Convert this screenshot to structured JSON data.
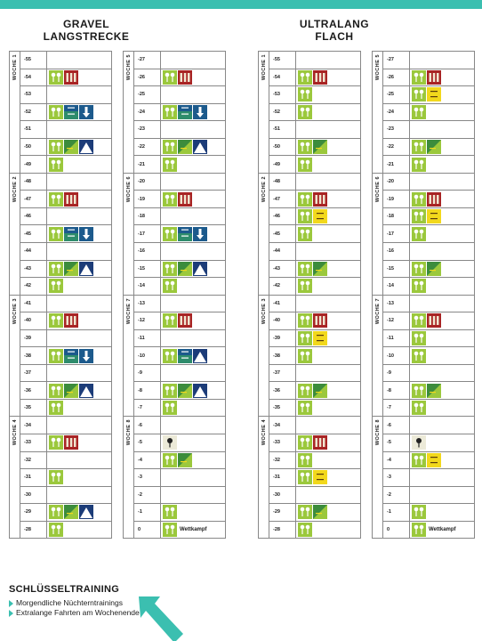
{
  "colors": {
    "accent": "#3bbfb0",
    "green_tile": "#9bc83c",
    "dark_green_tile": "#3c8c3c",
    "yellow_tile": "#f2d81c",
    "red_tile": "#a82424",
    "blue_tile": "#1c5a8c",
    "mountain_tile": "#1c3c78"
  },
  "plans": [
    {
      "title_lines": [
        "GRAVEL",
        "LANGSTRECKE"
      ],
      "columns": [
        {
          "weeks": [
            {
              "label": "WOCHE 1",
              "days": [
                {
                  "day": "-55",
                  "tiles": []
                },
                {
                  "day": "-54",
                  "tiles": [
                    "green",
                    "red"
                  ]
                },
                {
                  "day": "-53",
                  "tiles": []
                },
                {
                  "day": "-52",
                  "tiles": [
                    "green",
                    "blue-text",
                    "blue-arrow"
                  ]
                },
                {
                  "day": "-51",
                  "tiles": []
                },
                {
                  "day": "-50",
                  "tiles": [
                    "green",
                    "darkgreen",
                    "mountain"
                  ]
                },
                {
                  "day": "-49",
                  "tiles": [
                    "green"
                  ]
                }
              ]
            },
            {
              "label": "WOCHE 2",
              "days": [
                {
                  "day": "-48",
                  "tiles": []
                },
                {
                  "day": "-47",
                  "tiles": [
                    "green",
                    "red"
                  ]
                },
                {
                  "day": "-46",
                  "tiles": []
                },
                {
                  "day": "-45",
                  "tiles": [
                    "green",
                    "blue-text",
                    "blue-arrow"
                  ]
                },
                {
                  "day": "-44",
                  "tiles": []
                },
                {
                  "day": "-43",
                  "tiles": [
                    "green",
                    "darkgreen",
                    "mountain"
                  ]
                },
                {
                  "day": "-42",
                  "tiles": [
                    "green"
                  ]
                }
              ]
            },
            {
              "label": "WOCHE 3",
              "days": [
                {
                  "day": "-41",
                  "tiles": []
                },
                {
                  "day": "-40",
                  "tiles": [
                    "green",
                    "red"
                  ]
                },
                {
                  "day": "-39",
                  "tiles": []
                },
                {
                  "day": "-38",
                  "tiles": [
                    "green",
                    "blue-text",
                    "blue-arrow"
                  ]
                },
                {
                  "day": "-37",
                  "tiles": []
                },
                {
                  "day": "-36",
                  "tiles": [
                    "green",
                    "darkgreen",
                    "mountain"
                  ]
                },
                {
                  "day": "-35",
                  "tiles": [
                    "green"
                  ]
                }
              ]
            },
            {
              "label": "WOCHE 4",
              "days": [
                {
                  "day": "-34",
                  "tiles": []
                },
                {
                  "day": "-33",
                  "tiles": [
                    "green",
                    "red"
                  ]
                },
                {
                  "day": "-32",
                  "tiles": []
                },
                {
                  "day": "-31",
                  "tiles": [
                    "green"
                  ]
                },
                {
                  "day": "-30",
                  "tiles": []
                },
                {
                  "day": "-29",
                  "tiles": [
                    "green",
                    "darkgreen",
                    "mountain"
                  ]
                },
                {
                  "day": "-28",
                  "tiles": [
                    "green"
                  ]
                }
              ]
            }
          ]
        },
        {
          "weeks": [
            {
              "label": "WOCHE 5",
              "days": [
                {
                  "day": "-27",
                  "tiles": []
                },
                {
                  "day": "-26",
                  "tiles": [
                    "green",
                    "red"
                  ]
                },
                {
                  "day": "-25",
                  "tiles": []
                },
                {
                  "day": "-24",
                  "tiles": [
                    "green",
                    "blue-text",
                    "blue-arrow"
                  ]
                },
                {
                  "day": "-23",
                  "tiles": []
                },
                {
                  "day": "-22",
                  "tiles": [
                    "green",
                    "darkgreen",
                    "mountain"
                  ]
                },
                {
                  "day": "-21",
                  "tiles": [
                    "green"
                  ]
                }
              ]
            },
            {
              "label": "WOCHE 6",
              "days": [
                {
                  "day": "-20",
                  "tiles": []
                },
                {
                  "day": "-19",
                  "tiles": [
                    "green",
                    "red"
                  ]
                },
                {
                  "day": "-18",
                  "tiles": []
                },
                {
                  "day": "-17",
                  "tiles": [
                    "green",
                    "blue-text",
                    "blue-arrow"
                  ]
                },
                {
                  "day": "-16",
                  "tiles": []
                },
                {
                  "day": "-15",
                  "tiles": [
                    "green",
                    "darkgreen",
                    "mountain"
                  ]
                },
                {
                  "day": "-14",
                  "tiles": [
                    "green"
                  ]
                }
              ]
            },
            {
              "label": "WOCHE 7",
              "days": [
                {
                  "day": "-13",
                  "tiles": []
                },
                {
                  "day": "-12",
                  "tiles": [
                    "green",
                    "red"
                  ]
                },
                {
                  "day": "-11",
                  "tiles": []
                },
                {
                  "day": "-10",
                  "tiles": [
                    "green",
                    "blue-text",
                    "mountain"
                  ]
                },
                {
                  "day": "-9",
                  "tiles": []
                },
                {
                  "day": "-8",
                  "tiles": [
                    "green",
                    "darkgreen",
                    "mountain"
                  ]
                },
                {
                  "day": "-7",
                  "tiles": [
                    "green"
                  ]
                }
              ]
            },
            {
              "label": "WOCHE 8",
              "days": [
                {
                  "day": "-6",
                  "tiles": []
                },
                {
                  "day": "-5",
                  "tiles": [
                    "beige"
                  ]
                },
                {
                  "day": "-4",
                  "tiles": [
                    "green",
                    "darkgreen"
                  ]
                },
                {
                  "day": "-3",
                  "tiles": []
                },
                {
                  "day": "-2",
                  "tiles": []
                },
                {
                  "day": "-1",
                  "tiles": [
                    "green"
                  ]
                },
                {
                  "day": "0",
                  "tiles": [
                    "green"
                  ],
                  "text": "Wettkampf"
                }
              ]
            }
          ]
        }
      ]
    },
    {
      "title_lines": [
        "ULTRALANG",
        "FLACH"
      ],
      "columns": [
        {
          "weeks": [
            {
              "label": "WOCHE 1",
              "days": [
                {
                  "day": "-55",
                  "tiles": []
                },
                {
                  "day": "-54",
                  "tiles": [
                    "green",
                    "red"
                  ]
                },
                {
                  "day": "-53",
                  "tiles": [
                    "green"
                  ]
                },
                {
                  "day": "-52",
                  "tiles": [
                    "green"
                  ]
                },
                {
                  "day": "-51",
                  "tiles": []
                },
                {
                  "day": "-50",
                  "tiles": [
                    "green",
                    "darkgreen"
                  ]
                },
                {
                  "day": "-49",
                  "tiles": [
                    "green"
                  ]
                }
              ]
            },
            {
              "label": "WOCHE 2",
              "days": [
                {
                  "day": "-48",
                  "tiles": []
                },
                {
                  "day": "-47",
                  "tiles": [
                    "green",
                    "red"
                  ]
                },
                {
                  "day": "-46",
                  "tiles": [
                    "green",
                    "yellow"
                  ]
                },
                {
                  "day": "-45",
                  "tiles": [
                    "green"
                  ]
                },
                {
                  "day": "-44",
                  "tiles": []
                },
                {
                  "day": "-43",
                  "tiles": [
                    "green",
                    "darkgreen"
                  ]
                },
                {
                  "day": "-42",
                  "tiles": [
                    "green"
                  ]
                }
              ]
            },
            {
              "label": "WOCHE 3",
              "days": [
                {
                  "day": "-41",
                  "tiles": []
                },
                {
                  "day": "-40",
                  "tiles": [
                    "green",
                    "red"
                  ]
                },
                {
                  "day": "-39",
                  "tiles": [
                    "green",
                    "yellow"
                  ]
                },
                {
                  "day": "-38",
                  "tiles": [
                    "green"
                  ]
                },
                {
                  "day": "-37",
                  "tiles": []
                },
                {
                  "day": "-36",
                  "tiles": [
                    "green",
                    "darkgreen"
                  ]
                },
                {
                  "day": "-35",
                  "tiles": [
                    "green"
                  ]
                }
              ]
            },
            {
              "label": "WOCHE 4",
              "days": [
                {
                  "day": "-34",
                  "tiles": []
                },
                {
                  "day": "-33",
                  "tiles": [
                    "green",
                    "red"
                  ]
                },
                {
                  "day": "-32",
                  "tiles": [
                    "green"
                  ]
                },
                {
                  "day": "-31",
                  "tiles": [
                    "green",
                    "yellow"
                  ]
                },
                {
                  "day": "-30",
                  "tiles": []
                },
                {
                  "day": "-29",
                  "tiles": [
                    "green",
                    "darkgreen"
                  ]
                },
                {
                  "day": "-28",
                  "tiles": [
                    "green"
                  ]
                }
              ]
            }
          ]
        },
        {
          "weeks": [
            {
              "label": "WOCHE 5",
              "days": [
                {
                  "day": "-27",
                  "tiles": []
                },
                {
                  "day": "-26",
                  "tiles": [
                    "green",
                    "red"
                  ]
                },
                {
                  "day": "-25",
                  "tiles": [
                    "green",
                    "yellow"
                  ]
                },
                {
                  "day": "-24",
                  "tiles": [
                    "green"
                  ]
                },
                {
                  "day": "-23",
                  "tiles": []
                },
                {
                  "day": "-22",
                  "tiles": [
                    "green",
                    "darkgreen"
                  ]
                },
                {
                  "day": "-21",
                  "tiles": [
                    "green"
                  ]
                }
              ]
            },
            {
              "label": "WOCHE 6",
              "days": [
                {
                  "day": "-20",
                  "tiles": []
                },
                {
                  "day": "-19",
                  "tiles": [
                    "green",
                    "red"
                  ]
                },
                {
                  "day": "-18",
                  "tiles": [
                    "green",
                    "yellow"
                  ]
                },
                {
                  "day": "-17",
                  "tiles": [
                    "green"
                  ]
                },
                {
                  "day": "-16",
                  "tiles": []
                },
                {
                  "day": "-15",
                  "tiles": [
                    "green",
                    "darkgreen"
                  ]
                },
                {
                  "day": "-14",
                  "tiles": [
                    "green"
                  ]
                }
              ]
            },
            {
              "label": "WOCHE 7",
              "days": [
                {
                  "day": "-13",
                  "tiles": []
                },
                {
                  "day": "-12",
                  "tiles": [
                    "green",
                    "red"
                  ]
                },
                {
                  "day": "-11",
                  "tiles": [
                    "green"
                  ]
                },
                {
                  "day": "-10",
                  "tiles": [
                    "green"
                  ]
                },
                {
                  "day": "-9",
                  "tiles": []
                },
                {
                  "day": "-8",
                  "tiles": [
                    "green",
                    "darkgreen"
                  ]
                },
                {
                  "day": "-7",
                  "tiles": [
                    "green"
                  ]
                }
              ]
            },
            {
              "label": "WOCHE 8",
              "days": [
                {
                  "day": "-6",
                  "tiles": []
                },
                {
                  "day": "-5",
                  "tiles": [
                    "beige"
                  ]
                },
                {
                  "day": "-4",
                  "tiles": [
                    "green",
                    "yellow"
                  ]
                },
                {
                  "day": "-3",
                  "tiles": []
                },
                {
                  "day": "-2",
                  "tiles": []
                },
                {
                  "day": "-1",
                  "tiles": [
                    "green"
                  ]
                },
                {
                  "day": "0",
                  "tiles": [
                    "green"
                  ],
                  "text": "Wettkampf"
                }
              ]
            }
          ]
        }
      ]
    }
  ],
  "legend": {
    "title": "SCHLÜSSELTRAINING",
    "items": [
      "Morgendliche Nüchterntrainings",
      "Extralange Fahrten am Wochenende"
    ]
  }
}
